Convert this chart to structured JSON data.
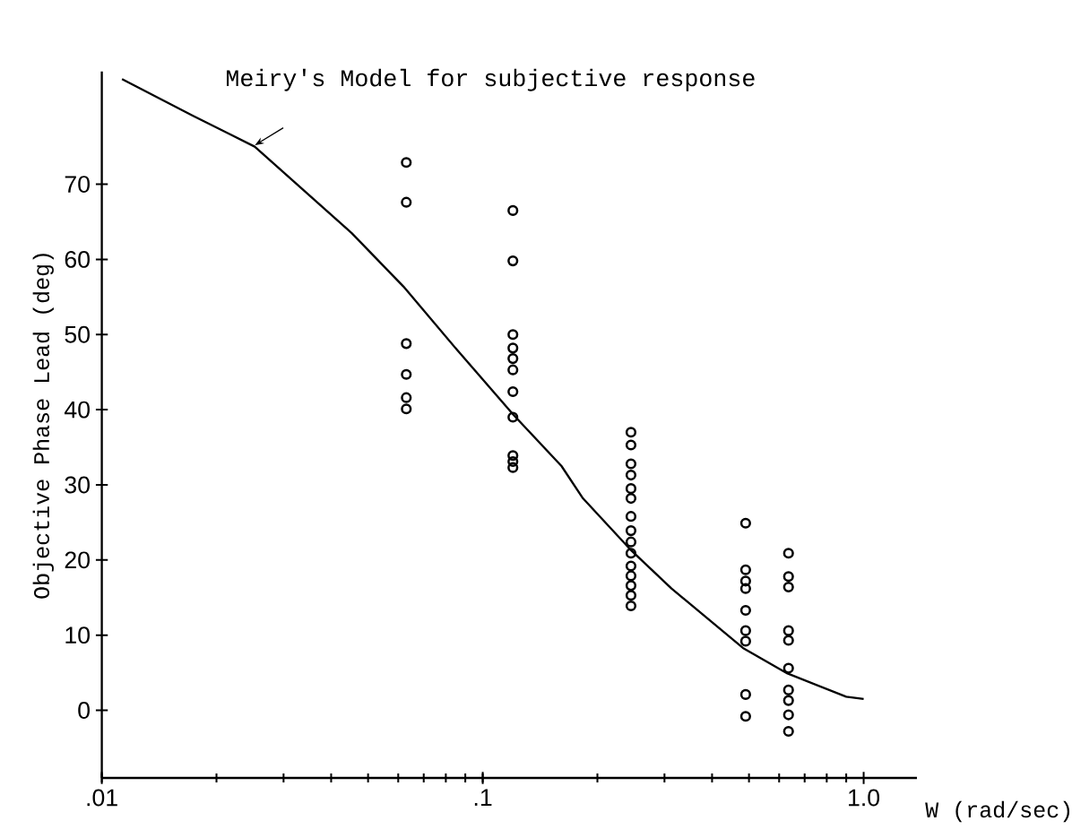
{
  "chart_data": {
    "type": "scatter",
    "xlabel": "W (rad/sec)",
    "ylabel": "Objective Phase Lead (deg)",
    "log": "x",
    "xlim": [
      0.01,
      1.38
    ],
    "ylim": [
      -9,
      85
    ],
    "xticks": [
      {
        "value": 0.01,
        "label": ".01"
      },
      {
        "value": 0.1,
        "label": ".1"
      },
      {
        "value": 1,
        "label": "1.0"
      }
    ],
    "yticks": [
      0,
      10,
      20,
      30,
      40,
      50,
      60,
      70
    ],
    "marker": "circle",
    "annotations": [
      {
        "text": "Meiry's Model for subjective response",
        "x": 0.025,
        "y": 75
      }
    ],
    "series": [
      {
        "type": "line",
        "color": "#000000",
        "marker": "none",
        "x": [
          0.0113,
          0.01736,
          0.0252,
          0.0453,
          0.0619,
          0.0855,
          0.1205,
          0.161,
          0.1833,
          0.244,
          0.313,
          0.482,
          0.631,
          0.9,
          1.0
        ],
        "values": [
          84.0,
          79.1,
          75.0,
          63.5,
          56.4,
          48.0,
          39.3,
          32.5,
          28.2,
          21.4,
          16.2,
          8.3,
          4.9,
          1.8,
          1.5
        ]
      },
      {
        "color": "#000000",
        "x": [
          0.063,
          0.063,
          0.063,
          0.063,
          0.063,
          0.063
        ],
        "values": [
          72.9,
          67.6,
          48.8,
          44.7,
          41.6,
          40.1
        ]
      },
      {
        "color": "#000000",
        "x": [
          0.12,
          0.12,
          0.12,
          0.12,
          0.12,
          0.12,
          0.12,
          0.12,
          0.12,
          0.12,
          0.12
        ],
        "values": [
          66.5,
          59.8,
          50.0,
          48.2,
          46.8,
          45.3,
          42.4,
          39.0,
          33.9,
          33.1,
          32.3
        ]
      },
      {
        "color": "#000000",
        "x": [
          0.245,
          0.245,
          0.245,
          0.245,
          0.245,
          0.245,
          0.245,
          0.245,
          0.245,
          0.245,
          0.245,
          0.245,
          0.245,
          0.245,
          0.245
        ],
        "values": [
          37.0,
          35.3,
          32.8,
          31.3,
          29.5,
          28.2,
          25.8,
          23.9,
          22.4,
          20.9,
          19.2,
          17.9,
          16.6,
          15.3,
          13.9
        ]
      },
      {
        "color": "#000000",
        "x": [
          0.49,
          0.49,
          0.49,
          0.49,
          0.49,
          0.49,
          0.49,
          0.49,
          0.49
        ],
        "values": [
          24.9,
          18.7,
          17.2,
          16.2,
          13.3,
          10.6,
          9.2,
          2.1,
          -0.8
        ]
      },
      {
        "color": "#000000",
        "x": [
          0.635,
          0.635,
          0.635,
          0.635,
          0.635,
          0.635,
          0.635,
          0.635,
          0.635,
          0.635
        ],
        "values": [
          20.9,
          17.8,
          16.4,
          10.6,
          9.3,
          5.6,
          2.7,
          1.3,
          -0.6,
          -2.8
        ]
      }
    ]
  }
}
